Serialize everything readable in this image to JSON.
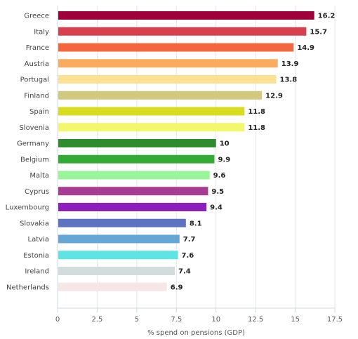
{
  "chart_data": {
    "type": "bar",
    "orientation": "horizontal",
    "categories": [
      "Greece",
      "Italy",
      "France",
      "Austria",
      "Portugal",
      "Finland",
      "Spain",
      "Slovenia",
      "Germany",
      "Belgium",
      "Malta",
      "Cyprus",
      "Luxembourg",
      "Slovakia",
      "Latvia",
      "Estonia",
      "Ireland",
      "Netherlands"
    ],
    "values": [
      16.2,
      15.7,
      14.9,
      13.9,
      13.8,
      12.9,
      11.8,
      11.8,
      10,
      9.9,
      9.6,
      9.5,
      9.4,
      8.1,
      7.7,
      7.6,
      7.4,
      6.9
    ],
    "value_labels": [
      "16.2",
      "15.7",
      "14.9",
      "13.9",
      "13.8",
      "12.9",
      "11.8",
      "11.8",
      "10",
      "9.9",
      "9.6",
      "9.5",
      "9.4",
      "8.1",
      "7.7",
      "7.6",
      "7.4",
      "6.9"
    ],
    "colors": [
      "#a0003c",
      "#d9404f",
      "#f4673a",
      "#f9ab5e",
      "#fde192",
      "#d2c980",
      "#d7dd1c",
      "#f3f76a",
      "#2e8b2e",
      "#33aa33",
      "#98f59a",
      "#a73c95",
      "#8f1fbd",
      "#5e72c2",
      "#64a6d6",
      "#5ee4e4",
      "#d3dcdc",
      "#f6e6e6"
    ],
    "xlabel": "% spend on pensions (GDP)",
    "xlim": [
      0,
      17.5
    ],
    "xticks": [
      0,
      2.5,
      5,
      7.5,
      10,
      12.5,
      15,
      17.5
    ],
    "xtick_labels": [
      "0",
      "2.5",
      "5",
      "7.5",
      "10",
      "12.5",
      "15",
      "17.5"
    ],
    "grid": true
  }
}
